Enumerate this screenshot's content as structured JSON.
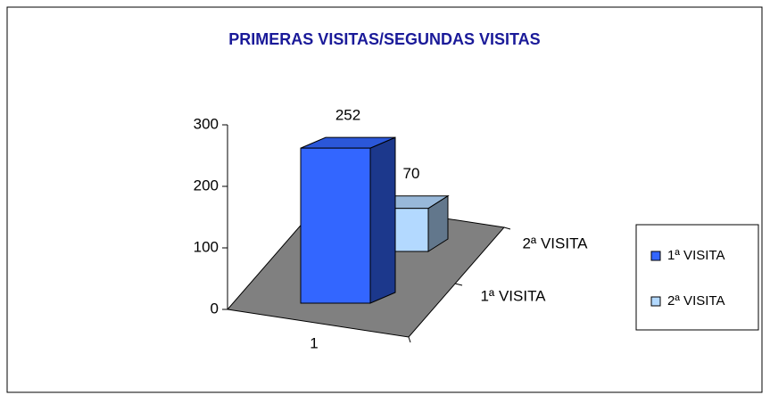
{
  "chart_data": {
    "type": "bar3d",
    "title": "PRIMERAS VISITAS/SEGUNDAS VISITAS",
    "categories": [
      "1"
    ],
    "series": [
      {
        "name": "1ª VISITA",
        "color": "#3366ff",
        "values": [
          252
        ]
      },
      {
        "name": "2ª VISITA",
        "color": "#b3d9ff",
        "values": [
          70
        ]
      }
    ],
    "ylim": [
      0,
      300
    ],
    "yticks": [
      0,
      100,
      200,
      300
    ],
    "grid": false,
    "legend": "right"
  }
}
